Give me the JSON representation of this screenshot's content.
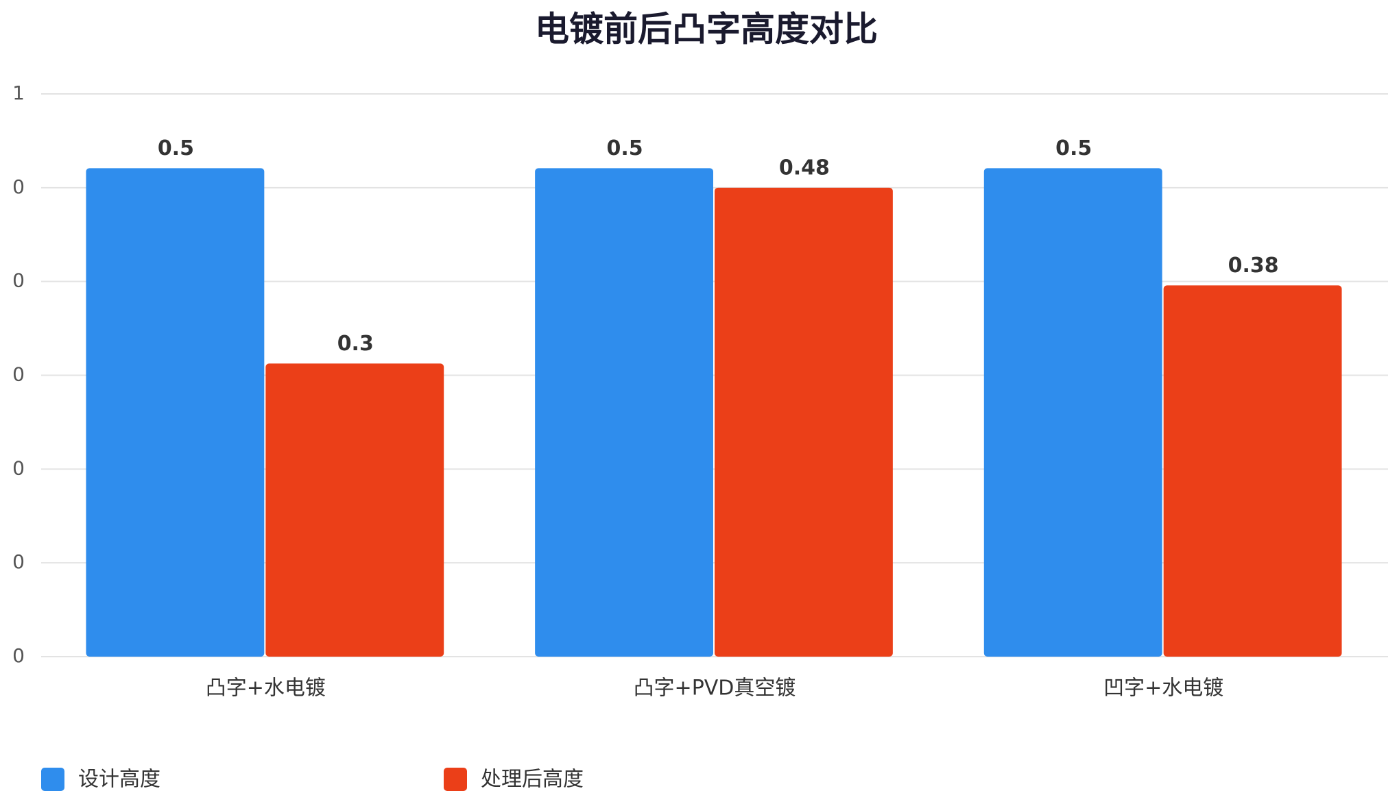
{
  "chart_data": {
    "type": "bar",
    "title": "电镀前后凸字高度对比",
    "categories": [
      "凸字+水电镀",
      "凸字+PVD真空镀",
      "凹字+水电镀"
    ],
    "series": [
      {
        "name": "设计高度",
        "color": "#2f8ded",
        "values": [
          0.5,
          0.5,
          0.5
        ]
      },
      {
        "name": "处理后高度",
        "color": "#eb3f18",
        "values": [
          0.3,
          0.48,
          0.38
        ]
      }
    ],
    "ylim": [
      0,
      0.576
    ],
    "yticks": [
      {
        "value": 0,
        "label": "0"
      },
      {
        "value": 0.096,
        "label": "0"
      },
      {
        "value": 0.192,
        "label": "0"
      },
      {
        "value": 0.288,
        "label": "0"
      },
      {
        "value": 0.384,
        "label": "0"
      },
      {
        "value": 0.48,
        "label": "0"
      },
      {
        "value": 0.576,
        "label": "1"
      }
    ],
    "grid": true,
    "legend": "bottom-left"
  }
}
